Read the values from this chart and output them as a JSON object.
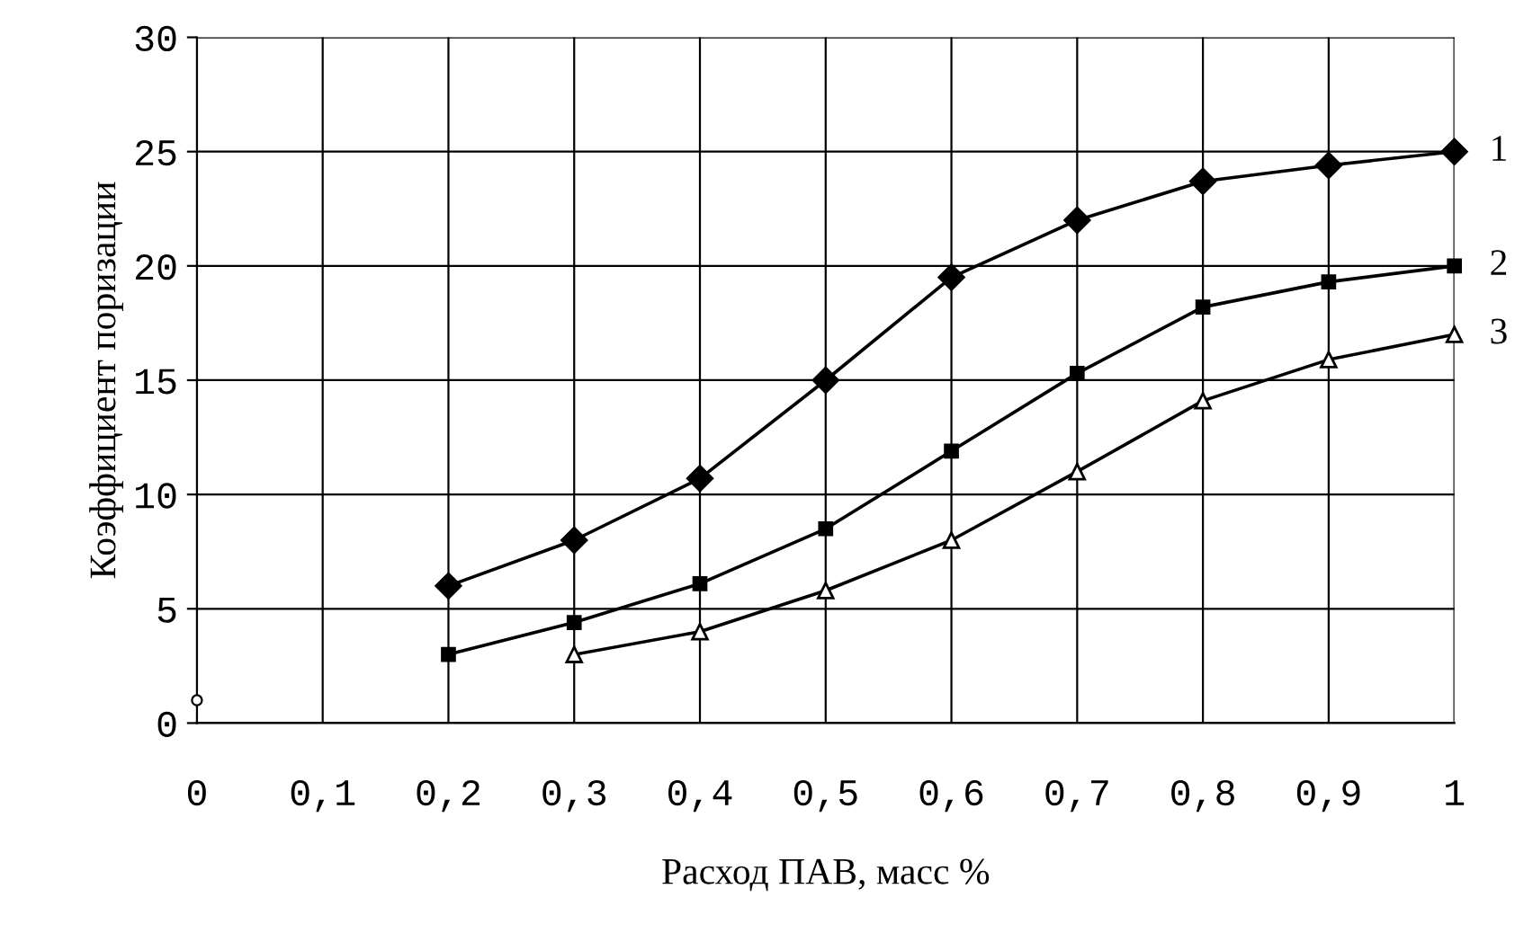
{
  "chart_data": {
    "type": "line",
    "xlabel": "Расход ПАВ, масс %",
    "ylabel": "Коэффициент поризации",
    "xlim": [
      0,
      1
    ],
    "ylim": [
      0,
      30
    ],
    "xticks": [
      0,
      {
        "value": 0.1,
        "label": "0,1"
      },
      {
        "value": 0.2,
        "label": "0,2"
      },
      {
        "value": 0.3,
        "label": "0,3"
      },
      {
        "value": 0.4,
        "label": "0,4"
      },
      {
        "value": 0.5,
        "label": "0,5"
      },
      {
        "value": 0.6,
        "label": "0,6"
      },
      {
        "value": 0.7,
        "label": "0,7"
      },
      {
        "value": 0.8,
        "label": "0,8"
      },
      {
        "value": 0.9,
        "label": "0,9"
      },
      1
    ],
    "yticks": [
      0,
      5,
      10,
      15,
      20,
      25,
      30
    ],
    "grid": true,
    "legend": false,
    "series": [
      {
        "name": "1",
        "color": "#000000",
        "marker": "diamond",
        "x": [
          0.2,
          0.3,
          0.4,
          0.5,
          0.6,
          0.7,
          0.8,
          0.9,
          1
        ],
        "values": [
          6,
          8,
          10.7,
          15,
          19.5,
          22,
          23.7,
          24.4,
          25
        ]
      },
      {
        "name": "2",
        "color": "#000000",
        "marker": "square",
        "x": [
          0.2,
          0.3,
          0.4,
          0.5,
          0.6,
          0.7,
          0.8,
          0.9,
          1
        ],
        "values": [
          3,
          4.4,
          6.1,
          8.5,
          11.9,
          15.3,
          18.2,
          19.3,
          20
        ]
      },
      {
        "name": "3",
        "color": "#000000",
        "marker": "triangle",
        "x": [
          0.3,
          0.4,
          0.5,
          0.6,
          0.7,
          0.8,
          0.9,
          1
        ],
        "values": [
          3,
          4,
          5.8,
          8,
          11,
          14.1,
          15.9,
          17
        ]
      },
      {
        "type": "scatter",
        "color": "#000000",
        "marker": "circle",
        "x": [
          0
        ],
        "values": [
          1
        ]
      }
    ]
  }
}
